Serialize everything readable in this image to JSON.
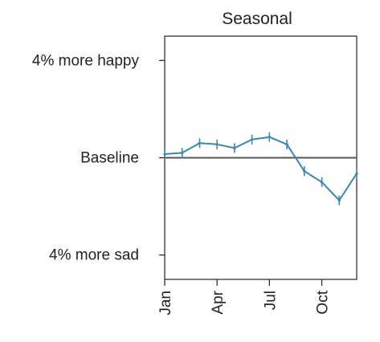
{
  "chart_data": {
    "type": "line",
    "title": "Seasonal",
    "xlabel": "",
    "ylabel": "",
    "x_tick_labels": [
      {
        "month": 1,
        "label": "Jan"
      },
      {
        "month": 4,
        "label": "Apr"
      },
      {
        "month": 7,
        "label": "Jul"
      },
      {
        "month": 10,
        "label": "Oct"
      }
    ],
    "y_tick_labels": [
      {
        "value": 4,
        "label": "4% more happy"
      },
      {
        "value": 0,
        "label": "Baseline"
      },
      {
        "value": -4,
        "label": "4% more sad"
      }
    ],
    "xlim": [
      1,
      12
    ],
    "ylim": [
      -5,
      5
    ],
    "baseline": 0,
    "series": [
      {
        "x": [
          1,
          2,
          3,
          4,
          5,
          6,
          7,
          8,
          9,
          10,
          11,
          12
        ],
        "values": [
          0.15,
          0.2,
          0.6,
          0.55,
          0.4,
          0.75,
          0.85,
          0.55,
          -0.55,
          -1.0,
          -1.75,
          -0.65
        ],
        "color": "#3a88b0",
        "error_bar": 0.1
      }
    ],
    "grid": false,
    "baseline_color": "#555555",
    "axis_color": "#222222"
  }
}
